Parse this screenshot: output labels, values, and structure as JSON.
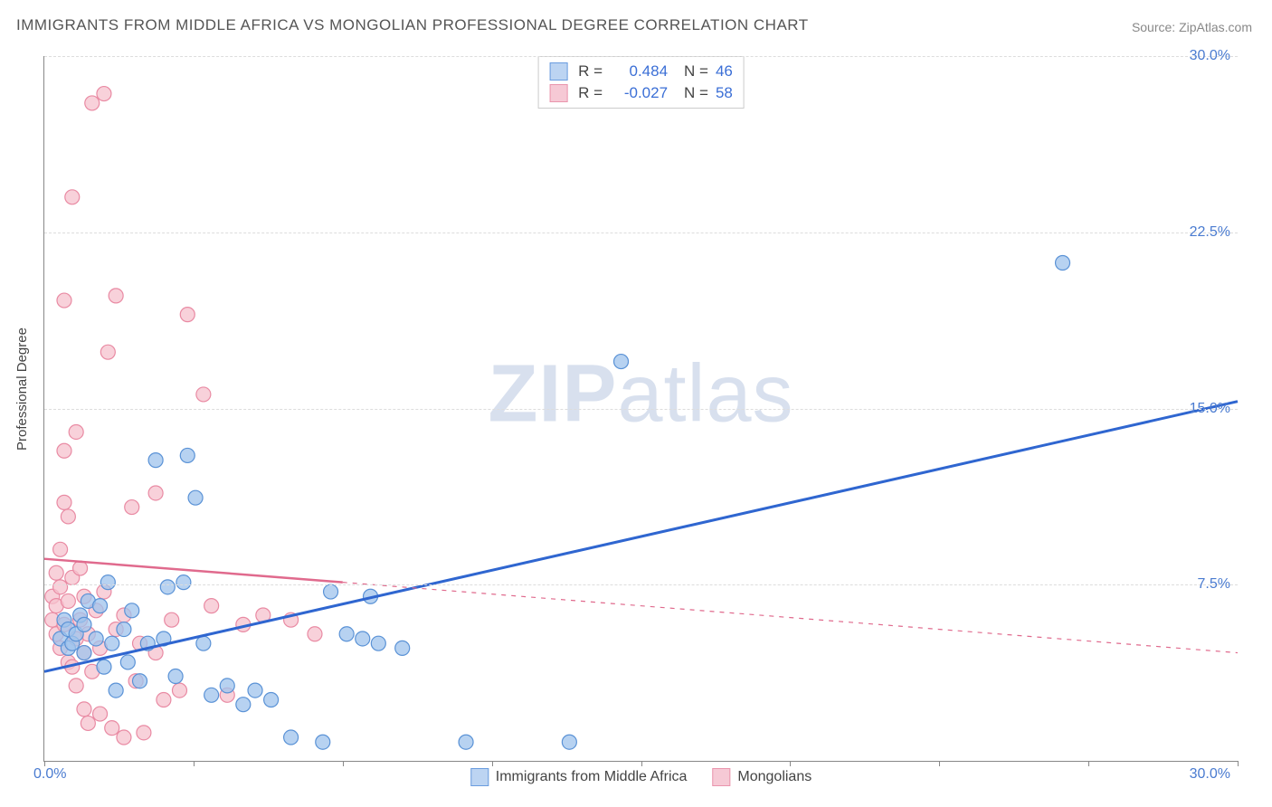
{
  "title": "IMMIGRANTS FROM MIDDLE AFRICA VS MONGOLIAN PROFESSIONAL DEGREE CORRELATION CHART",
  "source_label": "Source: ZipAtlas.com",
  "y_axis_title": "Professional Degree",
  "watermark": {
    "bold": "ZIP",
    "light": "atlas"
  },
  "axes": {
    "xlim": [
      0,
      30
    ],
    "ylim": [
      0,
      30
    ],
    "x_origin_label": "0.0%",
    "x_max_label": "30.0%",
    "y_ticks": [
      7.5,
      15.0,
      22.5,
      30.0
    ],
    "y_tick_labels": [
      "7.5%",
      "15.0%",
      "22.5%",
      "30.0%"
    ],
    "x_tick_positions": [
      0,
      3.75,
      7.5,
      11.25,
      15,
      18.75,
      22.5,
      26.25,
      30
    ],
    "grid_color": "#dddddd",
    "axis_color": "#888888"
  },
  "series": [
    {
      "name": "Immigrants from Middle Africa",
      "label": "Immigrants from Middle Africa",
      "R": "0.484",
      "N": "46",
      "marker_color_fill": "#9fc3ec",
      "marker_color_stroke": "#5a92d6",
      "marker_radius": 8,
      "marker_opacity": 0.75,
      "trend_line_color": "#2f66d0",
      "trend_line_width": 3,
      "trend_solid_until_x": 30,
      "trend": {
        "x1": 0,
        "y1": 3.8,
        "x2": 30,
        "y2": 15.3
      },
      "points": [
        [
          0.4,
          5.2
        ],
        [
          0.5,
          6.0
        ],
        [
          0.6,
          4.8
        ],
        [
          0.6,
          5.6
        ],
        [
          0.7,
          5.0
        ],
        [
          0.8,
          5.4
        ],
        [
          0.9,
          6.2
        ],
        [
          1.0,
          4.6
        ],
        [
          1.0,
          5.8
        ],
        [
          1.1,
          6.8
        ],
        [
          1.3,
          5.2
        ],
        [
          1.4,
          6.6
        ],
        [
          1.5,
          4.0
        ],
        [
          1.6,
          7.6
        ],
        [
          1.7,
          5.0
        ],
        [
          1.8,
          3.0
        ],
        [
          2.0,
          5.6
        ],
        [
          2.1,
          4.2
        ],
        [
          2.2,
          6.4
        ],
        [
          2.4,
          3.4
        ],
        [
          2.6,
          5.0
        ],
        [
          2.8,
          12.8
        ],
        [
          3.0,
          5.2
        ],
        [
          3.1,
          7.4
        ],
        [
          3.3,
          3.6
        ],
        [
          3.5,
          7.6
        ],
        [
          3.8,
          11.2
        ],
        [
          4.0,
          5.0
        ],
        [
          4.2,
          2.8
        ],
        [
          4.6,
          3.2
        ],
        [
          5.0,
          2.4
        ],
        [
          5.3,
          3.0
        ],
        [
          5.7,
          2.6
        ],
        [
          6.2,
          1.0
        ],
        [
          7.0,
          0.8
        ],
        [
          7.2,
          7.2
        ],
        [
          7.6,
          5.4
        ],
        [
          8.0,
          5.2
        ],
        [
          8.2,
          7.0
        ],
        [
          8.4,
          5.0
        ],
        [
          9.0,
          4.8
        ],
        [
          10.6,
          0.8
        ],
        [
          13.2,
          0.8
        ],
        [
          14.5,
          17.0
        ],
        [
          25.6,
          21.2
        ],
        [
          3.6,
          13.0
        ]
      ]
    },
    {
      "name": "Mongolians",
      "label": "Mongolians",
      "R": "-0.027",
      "N": "58",
      "marker_color_fill": "#f6c1ce",
      "marker_color_stroke": "#e98aa3",
      "marker_radius": 8,
      "marker_opacity": 0.75,
      "trend_line_color": "#e06a8d",
      "trend_line_width": 2.5,
      "trend_solid_until_x": 7.5,
      "trend": {
        "x1": 0,
        "y1": 8.6,
        "x2": 30,
        "y2": 4.6
      },
      "points": [
        [
          0.2,
          6.0
        ],
        [
          0.2,
          7.0
        ],
        [
          0.3,
          5.4
        ],
        [
          0.3,
          8.0
        ],
        [
          0.3,
          6.6
        ],
        [
          0.4,
          4.8
        ],
        [
          0.4,
          7.4
        ],
        [
          0.4,
          9.0
        ],
        [
          0.5,
          5.8
        ],
        [
          0.5,
          11.0
        ],
        [
          0.5,
          13.2
        ],
        [
          0.5,
          19.6
        ],
        [
          0.6,
          4.2
        ],
        [
          0.6,
          6.8
        ],
        [
          0.6,
          10.4
        ],
        [
          0.7,
          4.0
        ],
        [
          0.7,
          7.8
        ],
        [
          0.7,
          24.0
        ],
        [
          0.8,
          3.2
        ],
        [
          0.8,
          5.2
        ],
        [
          0.8,
          14.0
        ],
        [
          0.9,
          6.0
        ],
        [
          0.9,
          8.2
        ],
        [
          1.0,
          2.2
        ],
        [
          1.0,
          4.6
        ],
        [
          1.0,
          7.0
        ],
        [
          1.1,
          1.6
        ],
        [
          1.1,
          5.4
        ],
        [
          1.2,
          3.8
        ],
        [
          1.2,
          28.0
        ],
        [
          1.3,
          6.4
        ],
        [
          1.4,
          2.0
        ],
        [
          1.4,
          4.8
        ],
        [
          1.5,
          7.2
        ],
        [
          1.5,
          28.4
        ],
        [
          1.6,
          17.4
        ],
        [
          1.7,
          1.4
        ],
        [
          1.8,
          5.6
        ],
        [
          1.8,
          19.8
        ],
        [
          2.0,
          1.0
        ],
        [
          2.0,
          6.2
        ],
        [
          2.2,
          10.8
        ],
        [
          2.3,
          3.4
        ],
        [
          2.4,
          5.0
        ],
        [
          2.5,
          1.2
        ],
        [
          2.8,
          4.6
        ],
        [
          2.8,
          11.4
        ],
        [
          3.0,
          2.6
        ],
        [
          3.2,
          6.0
        ],
        [
          3.4,
          3.0
        ],
        [
          3.6,
          19.0
        ],
        [
          4.0,
          15.6
        ],
        [
          4.2,
          6.6
        ],
        [
          4.6,
          2.8
        ],
        [
          5.0,
          5.8
        ],
        [
          5.5,
          6.2
        ],
        [
          6.2,
          6.0
        ],
        [
          6.8,
          5.4
        ]
      ]
    }
  ],
  "legend_top": {
    "R_label": "R =",
    "N_label": "N ="
  },
  "colors": {
    "blue_swatch_fill": "#bcd4f2",
    "blue_swatch_border": "#6a9cdf",
    "pink_swatch_fill": "#f6c9d5",
    "pink_swatch_border": "#ea95ad",
    "tick_label": "#4a7bd0"
  }
}
